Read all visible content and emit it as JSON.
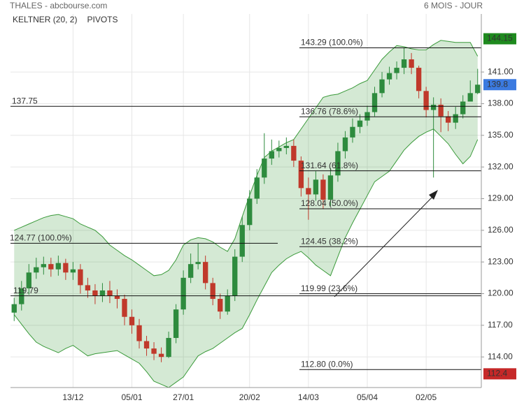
{
  "chart_data": {
    "type": "candlestick",
    "title": "THALES - abcbourse.com",
    "period": "6 MOIS - JOUR",
    "legend": [
      {
        "name": "KELTNER (20, 2)",
        "color": "#3a9a3a"
      },
      {
        "name": "PIVOTS",
        "color": "#555555"
      }
    ],
    "categories": [
      null,
      null,
      null,
      null,
      null,
      null,
      null,
      null,
      "13/12",
      null,
      null,
      null,
      null,
      null,
      null,
      null,
      "05/01",
      null,
      null,
      null,
      null,
      null,
      null,
      "27/01",
      null,
      null,
      null,
      null,
      null,
      null,
      null,
      null,
      "20/02",
      null,
      null,
      null,
      null,
      null,
      null,
      null,
      "14/03",
      null,
      null,
      null,
      null,
      null,
      null,
      null,
      "05/04",
      null,
      null,
      null,
      null,
      null,
      null,
      null,
      "02/05",
      null,
      null,
      null,
      null,
      null,
      null,
      null
    ],
    "open": [
      118.2,
      119.0,
      120.5,
      122.0,
      122.5,
      122.8,
      122.3,
      122.9,
      122.0,
      122.3,
      120.8,
      120.3,
      119.8,
      120.3,
      119.8,
      119.5,
      117.8,
      117.0,
      115.5,
      114.8,
      114.3,
      114.0,
      115.8,
      118.5,
      121.5,
      122.8,
      123.0,
      121.0,
      119.5,
      118.3,
      119.8,
      123.5,
      126.5,
      129.0,
      131.0,
      132.8,
      133.5,
      133.8,
      134.0,
      132.6,
      130.0,
      129.4,
      130.8,
      128.9,
      131.2,
      133.5,
      134.8,
      135.8,
      136.4,
      137.2,
      139.0,
      140.3,
      140.9,
      141.4,
      142.2,
      141.4,
      139.2,
      137.4,
      137.9,
      136.8,
      136.2,
      137.0,
      138.2,
      139.0
    ],
    "high": [
      119.6,
      121.2,
      122.8,
      123.4,
      123.5,
      123.4,
      123.6,
      123.3,
      123.0,
      122.8,
      121.5,
      120.9,
      121.0,
      121.2,
      120.4,
      119.9,
      118.5,
      117.6,
      116.0,
      115.4,
      114.9,
      116.4,
      119.0,
      122.2,
      123.8,
      124.8,
      123.6,
      121.5,
      120.0,
      120.4,
      124.2,
      127.3,
      129.8,
      131.8,
      135.2,
      134.6,
      134.5,
      134.8,
      134.6,
      133.0,
      131.0,
      131.6,
      131.3,
      131.9,
      134.3,
      135.4,
      136.6,
      137.0,
      137.8,
      139.6,
      141.0,
      141.5,
      142.0,
      143.3,
      142.8,
      141.6,
      139.6,
      138.6,
      138.5,
      137.3,
      137.7,
      138.8,
      140.2,
      141.3
    ],
    "low": [
      117.4,
      118.4,
      119.9,
      121.4,
      121.8,
      121.6,
      121.7,
      121.3,
      121.3,
      120.0,
      119.6,
      119.0,
      119.2,
      119.1,
      118.6,
      117.0,
      116.2,
      114.8,
      114.1,
      113.7,
      113.5,
      113.9,
      115.3,
      118.0,
      121.0,
      122.3,
      120.4,
      118.9,
      117.6,
      118.0,
      119.3,
      123.0,
      126.0,
      128.5,
      130.4,
      132.2,
      132.9,
      133.2,
      132.0,
      129.2,
      127.0,
      128.8,
      128.0,
      128.3,
      130.6,
      132.8,
      134.3,
      135.2,
      135.9,
      136.8,
      138.6,
      139.8,
      140.3,
      140.8,
      140.8,
      138.5,
      136.7,
      131.0,
      135.3,
      135.4,
      135.6,
      136.6,
      138.3,
      138.9
    ],
    "close": [
      119.0,
      120.5,
      122.0,
      122.5,
      122.8,
      122.3,
      122.9,
      122.0,
      122.3,
      120.8,
      120.3,
      119.8,
      120.3,
      119.8,
      119.5,
      117.8,
      117.0,
      115.5,
      114.8,
      114.3,
      114.0,
      115.8,
      118.5,
      121.5,
      122.8,
      123.0,
      121.0,
      119.5,
      118.3,
      119.8,
      123.5,
      126.5,
      129.0,
      131.0,
      132.8,
      133.5,
      133.8,
      134.0,
      132.6,
      130.0,
      129.4,
      130.8,
      128.9,
      131.2,
      133.5,
      134.8,
      135.8,
      136.4,
      137.2,
      139.0,
      140.3,
      140.9,
      141.4,
      142.2,
      141.4,
      139.2,
      137.4,
      137.9,
      136.8,
      136.2,
      137.0,
      138.2,
      139.0,
      139.8
    ],
    "up_color": "#2e8b3e",
    "down_color": "#c0392b",
    "keltner_upper": [
      126.0,
      126.3,
      126.6,
      126.9,
      127.2,
      127.4,
      127.5,
      127.3,
      127.1,
      126.6,
      126.3,
      126.0,
      125.4,
      124.6,
      124.1,
      123.6,
      123.2,
      122.7,
      122.2,
      121.7,
      121.8,
      122.2,
      123.2,
      124.6,
      125.1,
      125.3,
      125.2,
      124.9,
      124.4,
      124.0,
      125.2,
      127.3,
      129.3,
      131.2,
      132.9,
      133.5,
      133.9,
      134.3,
      134.6,
      135.6,
      136.6,
      137.6,
      138.6,
      138.8,
      138.9,
      139.2,
      139.5,
      139.9,
      140.2,
      141.2,
      142.2,
      142.9,
      143.5,
      143.4,
      143.2,
      143.1,
      143.1,
      143.6,
      144.0,
      143.9,
      143.8,
      143.8,
      143.8,
      142.5
    ],
    "keltner_lower": [
      118.0,
      117.1,
      116.2,
      115.4,
      115.0,
      114.7,
      114.4,
      114.8,
      115.1,
      114.6,
      114.1,
      114.3,
      114.4,
      114.5,
      114.6,
      114.2,
      113.8,
      113.4,
      112.6,
      111.7,
      111.4,
      111.1,
      111.6,
      112.1,
      113.1,
      114.1,
      114.5,
      114.8,
      115.3,
      115.8,
      116.3,
      116.7,
      118.0,
      119.4,
      120.7,
      122.0,
      122.7,
      123.3,
      123.7,
      124.0,
      123.4,
      122.7,
      122.2,
      121.7,
      123.5,
      125.3,
      126.7,
      128.0,
      129.3,
      130.6,
      131.1,
      131.6,
      132.6,
      133.6,
      134.3,
      134.9,
      135.3,
      135.6,
      134.9,
      134.2,
      133.2,
      132.3,
      133.0,
      134.6
    ],
    "keltner_color": "#3a9a3a",
    "levels": [
      {
        "value": 143.29,
        "label": "143.29  (100.0%)"
      },
      {
        "value": 137.75,
        "label": "137.75"
      },
      {
        "value": 136.76,
        "label": "136.76  (78.6%)"
      },
      {
        "value": 131.64,
        "label": "131.64  (61.8%)"
      },
      {
        "value": 128.04,
        "label": "128.04  (50.0%)"
      },
      {
        "value": 124.77,
        "label": "124.77  (100.0%)"
      },
      {
        "value": 124.45,
        "label": "124.45  (38.2%)"
      },
      {
        "value": 119.99,
        "label": "119.99  (23.6%)"
      },
      {
        "value": 119.79,
        "label": "119.79"
      },
      {
        "value": 112.8,
        "label": "112.80  (0.0%)"
      }
    ],
    "badges": [
      {
        "value": 144.15,
        "color": "#1e8a1e"
      },
      {
        "value": 139.8,
        "color": "#3b7ae0"
      },
      {
        "value": 112.4,
        "color": "#c62828"
      }
    ],
    "ylim": [
      111.1,
      146.5
    ],
    "yticks": [
      {
        "value": 114,
        "label": "114.00"
      },
      {
        "value": 117,
        "label": "117.00"
      },
      {
        "value": 120,
        "label": "120.00"
      },
      {
        "value": 123,
        "label": "123.00"
      },
      {
        "value": 126,
        "label": "126.00"
      },
      {
        "value": 129,
        "label": "129.00"
      },
      {
        "value": 132,
        "label": "132.00"
      },
      {
        "value": 135,
        "label": "135.00"
      },
      {
        "value": 138,
        "label": "138.00"
      },
      {
        "value": 141,
        "label": "141.00"
      }
    ],
    "grid": true
  }
}
